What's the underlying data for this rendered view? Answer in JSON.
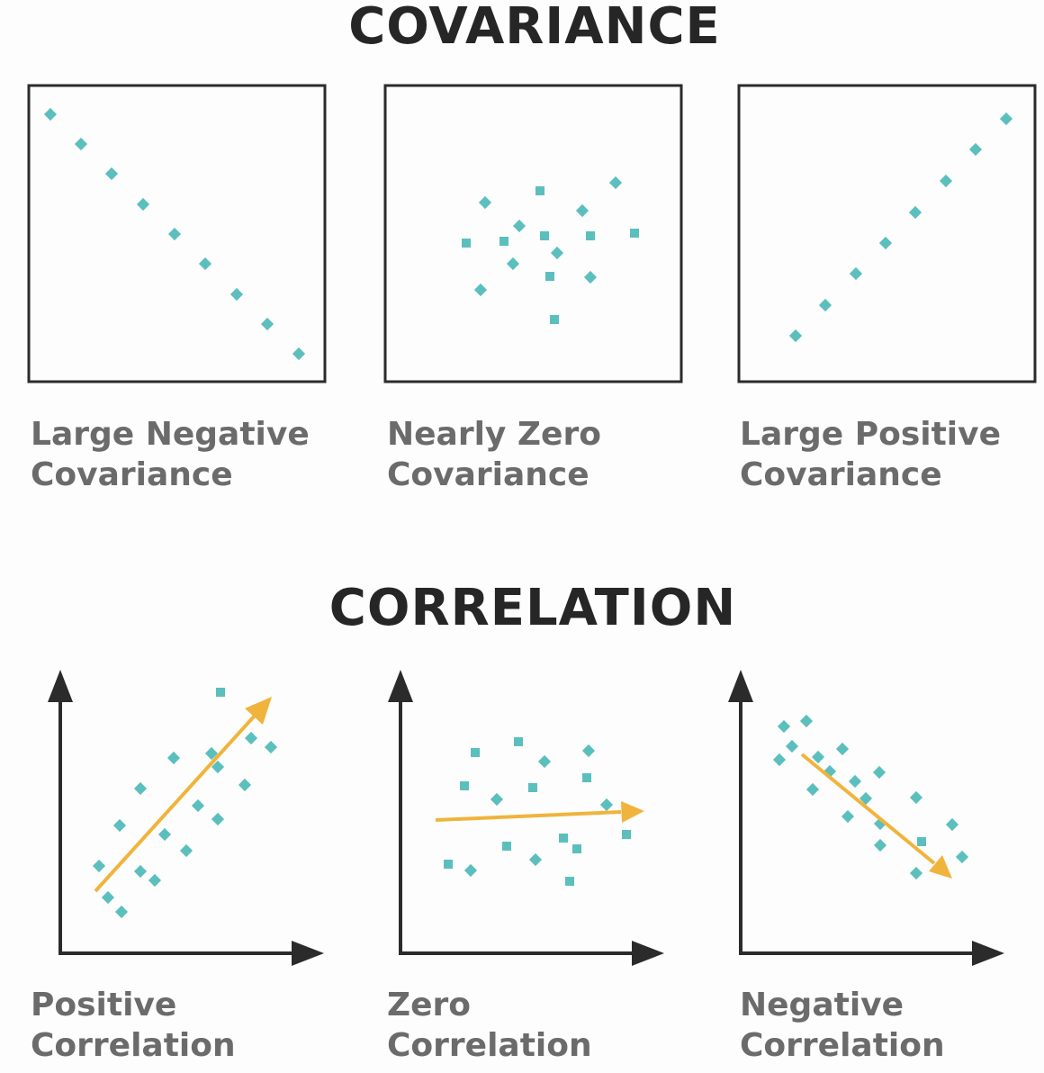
{
  "covariance": {
    "title": "COVARIANCE",
    "panels": [
      {
        "label_line1": "Large Negative",
        "label_line2": "Covariance"
      },
      {
        "label_line1": "Nearly Zero",
        "label_line2": "Covariance"
      },
      {
        "label_line1": "Large Positive",
        "label_line2": "Covariance"
      }
    ]
  },
  "correlation": {
    "title": "CORRELATION",
    "panels": [
      {
        "label_line1": "Positive",
        "label_line2": "Correlation"
      },
      {
        "label_line1": "Zero",
        "label_line2": "Correlation"
      },
      {
        "label_line1": "Negative",
        "label_line2": "Correlation"
      }
    ]
  },
  "colors": {
    "point": "#5bbfbd",
    "trend_arrow": "#f0b43c",
    "axis": "#2b2b2b",
    "frame": "#2b2b2b",
    "title_text": "#262626",
    "label_text": "#6b6b6b"
  }
}
